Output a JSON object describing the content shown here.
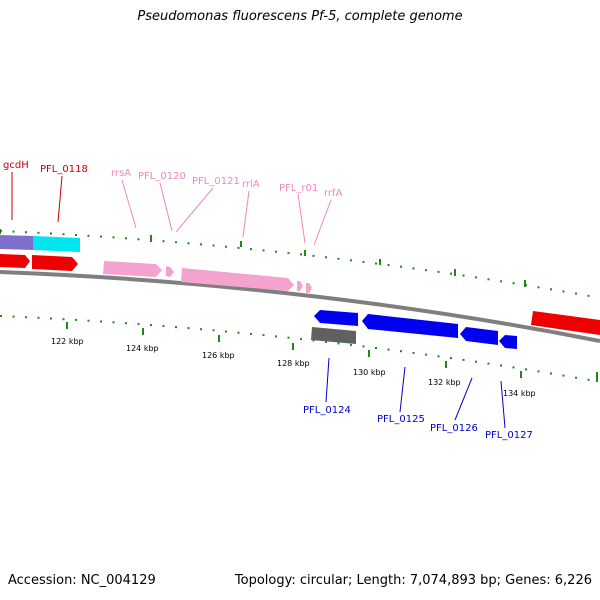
{
  "title": "Pseudomonas fluorescens Pf-5, complete genome",
  "footer": {
    "accession": "Accession: NC_004129",
    "summary": "Topology: circular; Length: 7,074,893 bp; Genes: 6,226"
  },
  "colors": {
    "backbone": "#7f7f7f",
    "tick_marks": "#1a8a1a",
    "label_red": "#cc0000",
    "label_pink": "#ee88bb",
    "label_blue": "#0000cc",
    "feature_red": "#ee0000",
    "feature_cyan": "#00e5ee",
    "feature_purple": "#7f6fcc",
    "feature_pink": "#f4a3cf",
    "feature_blue": "#0000ee",
    "feature_gray": "#606060"
  },
  "scale_labels": [
    "122 kbp",
    "124 kbp",
    "126 kbp",
    "128 kbp",
    "130 kbp",
    "132 kbp",
    "134 kbp"
  ],
  "feature_labels": {
    "gcdh": "gcdH",
    "pfl_0118": "PFL_0118",
    "rrsa": "rrsA",
    "pfl_0120": "PFL_0120",
    "pfl_0121": "PFL_0121",
    "rrla": "rrlA",
    "pfl_r01": "PFL_r01",
    "rrfa": "rrfA",
    "pfl_0124": "PFL_0124",
    "pfl_0125": "PFL_0125",
    "pfl_0126": "PFL_0126",
    "pfl_0127": "PFL_0127"
  }
}
